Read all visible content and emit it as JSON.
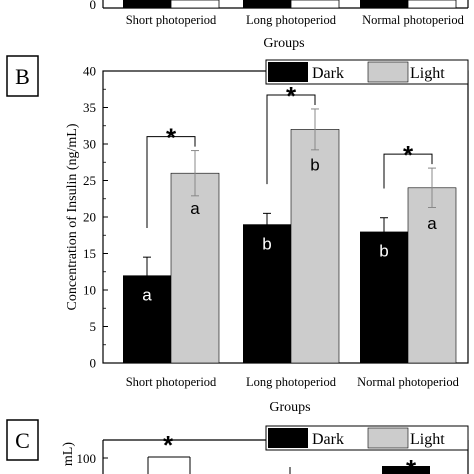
{
  "top_fragment": {
    "y_tick": "0",
    "categories": [
      "Short photoperiod",
      "Long photoperiod",
      "Normal photoperiod"
    ],
    "xlabel": "Groups"
  },
  "chart_data": {
    "type": "bar",
    "panel": "B",
    "categories": [
      "Short photoperiod",
      "Long photoperiod",
      "Normal photoperiod"
    ],
    "series": [
      {
        "name": "Dark",
        "color": "#000000",
        "values": [
          12,
          19,
          18
        ],
        "errors": [
          2.5,
          1.5,
          1.9
        ],
        "labels": [
          "a",
          "b",
          "b"
        ]
      },
      {
        "name": "Light",
        "color": "#cccccc",
        "values": [
          26,
          32,
          24
        ],
        "errors": [
          3.1,
          2.8,
          2.7
        ],
        "labels": [
          "a",
          "b",
          "a"
        ]
      }
    ],
    "significance": [
      "*",
      "*",
      "*"
    ],
    "xlabel": "Groups",
    "ylabel": "Concentration of Insulin (ng/mL)",
    "ylim": [
      0,
      40
    ],
    "yticks": [
      0,
      5,
      10,
      15,
      20,
      25,
      30,
      35,
      40
    ],
    "legend_position": "top-right"
  },
  "bottom_fragment": {
    "panel": "C",
    "y_tick": "100",
    "ylabel_fragment": "mL)",
    "legend": [
      "Dark",
      "Light"
    ],
    "significance": [
      "*",
      "*"
    ]
  }
}
